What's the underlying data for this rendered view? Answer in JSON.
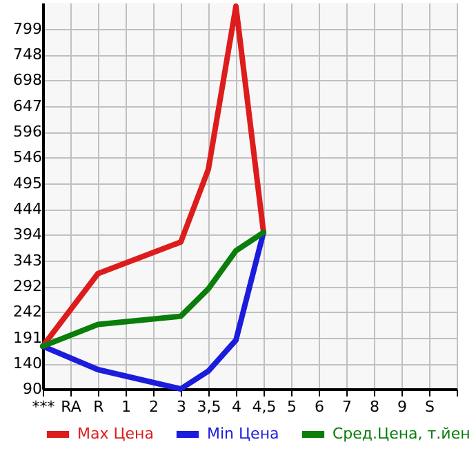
{
  "chart_data": {
    "type": "line",
    "categories": [
      "***",
      "RA",
      "R",
      "1",
      "2",
      "3",
      "3,5",
      "4",
      "4,5",
      "5",
      "6",
      "7",
      "8",
      "9",
      "S",
      null
    ],
    "series": [
      {
        "name": "Max Цена",
        "color": "#dd1c1c",
        "values": [
          174,
          null,
          317,
          null,
          null,
          379,
          522,
          843,
          398,
          null,
          null,
          null,
          null,
          null,
          null,
          null
        ]
      },
      {
        "name": "Min Цена",
        "color": "#1c1cdd",
        "values": [
          174,
          null,
          128,
          null,
          null,
          90,
          125,
          186,
          398,
          null,
          null,
          null,
          null,
          null,
          null,
          null
        ]
      },
      {
        "name": "Сред.Цена, т.йен",
        "color": "#0a7d0a",
        "values": [
          174,
          null,
          217,
          null,
          null,
          233,
          287,
          362,
          398,
          null,
          null,
          null,
          null,
          null,
          null,
          null
        ]
      }
    ],
    "ylim": [
      90,
      850
    ],
    "yticks": [
      90,
      140,
      191,
      242,
      292,
      343,
      394,
      444,
      495,
      546,
      596,
      647,
      698,
      748,
      799
    ],
    "grid": true,
    "legend": "bottom",
    "marker": "none",
    "line_style": "solid"
  }
}
